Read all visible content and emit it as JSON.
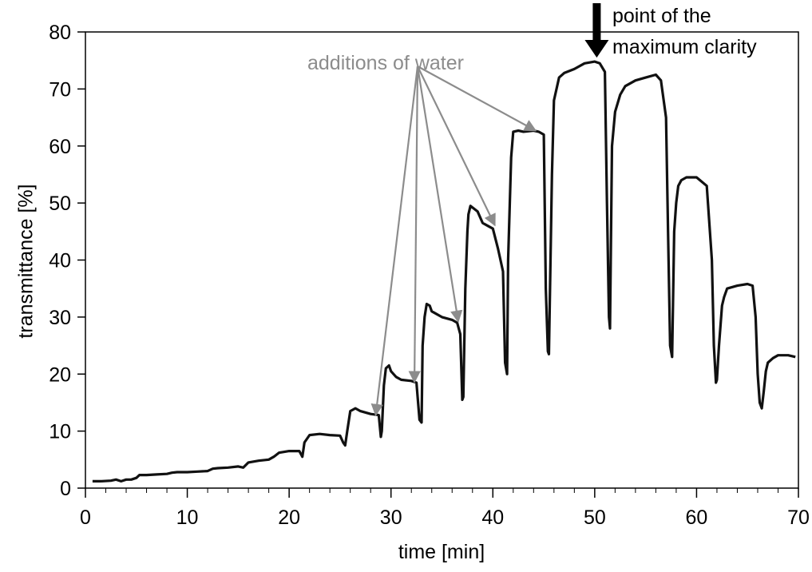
{
  "chart_data": {
    "type": "line",
    "title": "",
    "xlabel": "time [min]",
    "ylabel": "transmittance [%]",
    "xlim": [
      0,
      70
    ],
    "ylim": [
      0,
      80
    ],
    "x_ticks": [
      0,
      10,
      20,
      30,
      40,
      50,
      60,
      70
    ],
    "y_ticks": [
      0,
      10,
      20,
      30,
      40,
      50,
      60,
      70,
      80
    ],
    "x_tick_labels": [
      "0",
      "10",
      "20",
      "30",
      "40",
      "50",
      "60",
      "70"
    ],
    "y_tick_labels": [
      "0",
      "10",
      "20",
      "30",
      "40",
      "50",
      "60",
      "70",
      "80"
    ],
    "minor_x_step": 2,
    "grid": false,
    "series": [
      {
        "color": "#111111",
        "x": [
          0.7,
          1.5,
          2.5,
          3.0,
          3.5,
          4.0,
          4.5,
          5.0,
          5.3,
          6.0,
          7.0,
          8.0,
          8.5,
          9.0,
          10.0,
          11.0,
          12.0,
          12.5,
          13.0,
          14.0,
          15.0,
          15.5,
          16.0,
          17.0,
          18.0,
          18.5,
          19.0,
          20.0,
          21.0,
          21.3,
          21.5,
          22.0,
          23.0,
          24.0,
          25.0,
          25.3,
          25.5,
          25.7,
          26.0,
          26.5,
          27.0,
          28.0,
          28.8,
          29.0,
          29.1,
          29.3,
          29.5,
          29.8,
          30.0,
          30.5,
          31.0,
          32.0,
          32.5,
          32.8,
          33.0,
          33.1,
          33.3,
          33.5,
          33.8,
          34.0,
          35.0,
          36.0,
          36.5,
          36.8,
          37.0,
          37.1,
          37.3,
          37.5,
          37.6,
          37.8,
          38.0,
          38.5,
          39.0,
          39.5,
          40.0,
          40.5,
          41.0,
          41.2,
          41.4,
          41.5,
          41.8,
          42.0,
          42.5,
          43.0,
          44.0,
          44.5,
          45.0,
          45.2,
          45.4,
          45.5,
          45.8,
          46.0,
          46.5,
          47.0,
          48.0,
          49.0,
          50.0,
          50.5,
          51.0,
          51.2,
          51.4,
          51.5,
          51.7,
          52.0,
          52.5,
          53.0,
          54.0,
          55.0,
          56.0,
          56.5,
          57.0,
          57.2,
          57.4,
          57.6,
          57.8,
          58.0,
          58.2,
          58.5,
          59.0,
          60.0,
          61.0,
          61.5,
          61.7,
          61.9,
          62.0,
          62.2,
          62.5,
          62.7,
          63.0,
          64.0,
          65.0,
          65.5,
          65.8,
          66.0,
          66.2,
          66.4,
          66.6,
          66.8,
          67.0,
          67.5,
          68.0,
          69.0,
          69.7
        ],
        "y": [
          1.2,
          1.2,
          1.3,
          1.5,
          1.2,
          1.5,
          1.5,
          1.8,
          2.3,
          2.3,
          2.4,
          2.5,
          2.7,
          2.8,
          2.8,
          2.9,
          3.0,
          3.4,
          3.5,
          3.6,
          3.8,
          3.6,
          4.5,
          4.8,
          5.0,
          5.5,
          6.2,
          6.5,
          6.5,
          5.5,
          8.0,
          9.3,
          9.5,
          9.3,
          9.2,
          8.0,
          7.5,
          10.0,
          13.5,
          14.0,
          13.5,
          13.0,
          12.8,
          9.0,
          10.0,
          18.0,
          21.0,
          21.5,
          20.5,
          19.5,
          19.0,
          18.8,
          18.5,
          12.0,
          11.5,
          25.0,
          30.0,
          32.3,
          32.0,
          31.0,
          30.0,
          29.5,
          29.0,
          27.0,
          15.5,
          16.0,
          35.0,
          45.0,
          48.0,
          49.5,
          49.2,
          48.5,
          46.5,
          46.0,
          45.5,
          42.0,
          38.0,
          22.0,
          20.0,
          40.0,
          58.0,
          62.5,
          62.7,
          62.5,
          62.7,
          62.5,
          62.0,
          35.0,
          24.0,
          23.5,
          55.0,
          68.0,
          72.0,
          72.8,
          73.5,
          74.5,
          74.8,
          74.5,
          73.0,
          50.0,
          30.0,
          28.0,
          60.0,
          66.0,
          69.0,
          70.5,
          71.5,
          72.0,
          72.5,
          71.5,
          65.0,
          45.0,
          25.0,
          23.0,
          45.0,
          50.0,
          53.0,
          54.0,
          54.5,
          54.5,
          53.0,
          40.0,
          25.0,
          18.5,
          19.0,
          25.0,
          32.0,
          33.5,
          35.0,
          35.5,
          35.8,
          35.5,
          30.0,
          20.0,
          15.0,
          14.0,
          17.0,
          20.5,
          22.0,
          22.8,
          23.3,
          23.3,
          23.0
        ]
      }
    ],
    "annotations": [
      {
        "text": "additions of water",
        "color": "#8c8c8c",
        "targets": [
          [
            28.5,
            12.8
          ],
          [
            32.3,
            18.6
          ],
          [
            36.6,
            29.2
          ],
          [
            40.2,
            46.1
          ],
          [
            44.2,
            62.7
          ]
        ]
      },
      {
        "text_lines": [
          "point of the",
          "maximum clarity"
        ],
        "color": "#000000",
        "target": [
          50.2,
          75.5
        ]
      }
    ]
  }
}
